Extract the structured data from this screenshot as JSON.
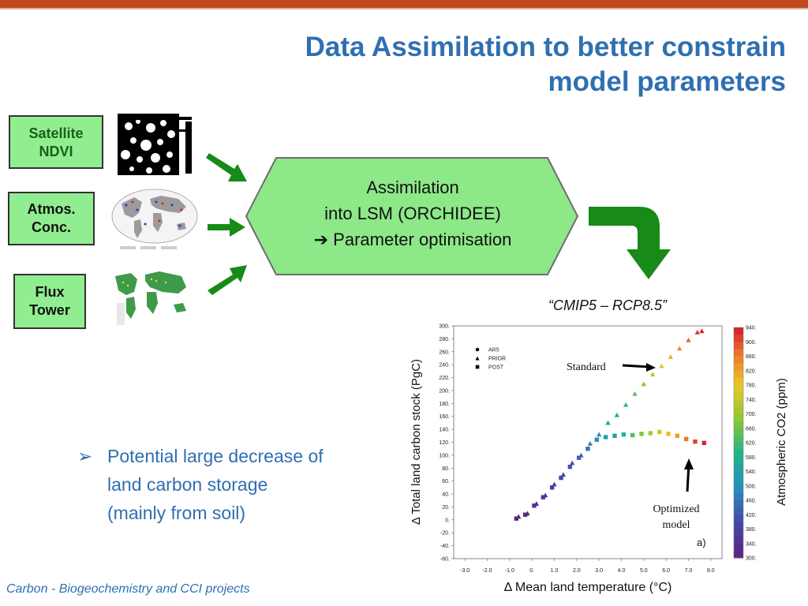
{
  "slide": {
    "title": [
      "Data Assimilation to better constrain",
      "model parameters"
    ],
    "footer": "Carbon - Biogeochemistry and CCI projects"
  },
  "sources": [
    {
      "lines": [
        "Satellite",
        "NDVI"
      ]
    },
    {
      "lines": [
        "Atmos.",
        "Conc."
      ]
    },
    {
      "lines": [
        "Flux",
        "Tower"
      ]
    }
  ],
  "process": {
    "lines": [
      "Assimilation",
      "into LSM (ORCHIDEE)",
      "➔ Parameter optimisation"
    ]
  },
  "scenario_label": "“CMIP5 – RCP8.5”",
  "bullet": {
    "marker": "➢",
    "lines": [
      "Potential large decrease of",
      "land carbon storage",
      "(mainly from soil)"
    ]
  },
  "colors": {
    "title_blue": "#2f6fb1",
    "box_green": "#90ee90",
    "arrow_green": "#178a17",
    "top_bar": "#bf4a1d"
  },
  "chart_data": {
    "type": "scatter",
    "xlabel": "Δ Mean land temperature (°C)",
    "ylabel": "Δ Total land carbon stock (PgC)",
    "xlim": [
      -3.5,
      8.5
    ],
    "ylim": [
      -60,
      300
    ],
    "xticks": [
      "-3.0",
      "-2.0",
      "-1.0",
      "0.",
      "1.0",
      "2.0",
      "3.0",
      "4.0",
      "5.0",
      "6.0",
      "7.0",
      "8.0"
    ],
    "yticks": [
      "300.",
      "280.",
      "260.",
      "240.",
      "220.",
      "200.",
      "180.",
      "160.",
      "140.",
      "120.",
      "100.",
      "80.",
      "60.",
      "40.",
      "20.",
      "0.",
      "-20.",
      "-40.",
      "-60."
    ],
    "legend": [
      "AR5",
      "PRIOR",
      "POST"
    ],
    "legend_position": "top-left",
    "colorbar": {
      "label": "Atmospheric CO2 (ppm)",
      "ticks": [
        "940.",
        "900.",
        "860.",
        "820.",
        "780.",
        "740.",
        "700.",
        "660.",
        "620.",
        "580.",
        "540.",
        "500.",
        "460.",
        "420.",
        "380.",
        "340.",
        "300."
      ],
      "range": [
        300,
        940
      ]
    },
    "annotations": [
      {
        "text": "Standard"
      },
      {
        "lines": [
          "Optimized",
          "model"
        ]
      },
      {
        "text": "a)"
      }
    ],
    "series": [
      {
        "name": "PRIOR",
        "points": [
          [
            -0.6,
            5,
            310
          ],
          [
            -0.2,
            10,
            320
          ],
          [
            0.2,
            25,
            335
          ],
          [
            0.6,
            38,
            355
          ],
          [
            1.0,
            55,
            375
          ],
          [
            1.4,
            70,
            395
          ],
          [
            1.8,
            88,
            420
          ],
          [
            2.2,
            100,
            440
          ],
          [
            2.6,
            118,
            470
          ],
          [
            3.0,
            132,
            500
          ],
          [
            3.4,
            150,
            530
          ],
          [
            3.8,
            162,
            560
          ],
          [
            4.2,
            178,
            600
          ],
          [
            4.6,
            195,
            640
          ],
          [
            5.0,
            210,
            680
          ],
          [
            5.4,
            225,
            720
          ],
          [
            5.8,
            238,
            760
          ],
          [
            6.2,
            252,
            800
          ],
          [
            6.6,
            265,
            840
          ],
          [
            7.0,
            278,
            880
          ],
          [
            7.4,
            290,
            920
          ],
          [
            7.6,
            292,
            935
          ]
        ]
      },
      {
        "name": "POST",
        "points": [
          [
            -0.7,
            2,
            305
          ],
          [
            -0.3,
            8,
            315
          ],
          [
            0.1,
            22,
            330
          ],
          [
            0.5,
            35,
            350
          ],
          [
            0.9,
            50,
            370
          ],
          [
            1.3,
            65,
            390
          ],
          [
            1.7,
            82,
            415
          ],
          [
            2.1,
            96,
            435
          ],
          [
            2.5,
            110,
            465
          ],
          [
            2.9,
            124,
            495
          ],
          [
            3.3,
            128,
            525
          ],
          [
            3.7,
            130,
            555
          ],
          [
            4.1,
            132,
            590
          ],
          [
            4.5,
            131,
            630
          ],
          [
            4.9,
            133,
            670
          ],
          [
            5.3,
            134,
            710
          ],
          [
            5.7,
            136,
            750
          ],
          [
            6.1,
            133,
            790
          ],
          [
            6.5,
            130,
            830
          ],
          [
            6.9,
            125,
            870
          ],
          [
            7.3,
            121,
            905
          ],
          [
            7.7,
            119,
            930
          ]
        ]
      }
    ]
  }
}
